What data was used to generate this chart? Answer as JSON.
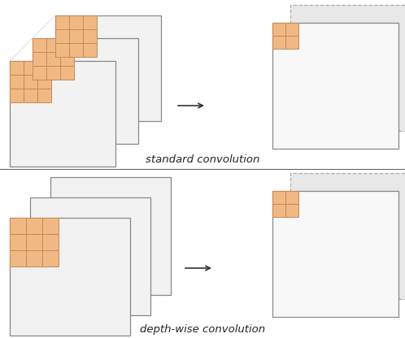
{
  "fig_width": 4.98,
  "fig_height": 4.16,
  "dpi": 100,
  "bg_color": "#ffffff",
  "orange_fill": "#f0b882",
  "orange_edge": "#c8895a",
  "box_fill_light": "#f2f2f2",
  "box_fill_lighter": "#f8f8f8",
  "box_edge": "#888888",
  "dashed_fill": "#e8e8e8",
  "dashed_edge": "#aaaaaa",
  "divider_color": "#666666",
  "dot_color": "#999999",
  "arrow_color": "#333333",
  "label_top": "standard convolution",
  "label_bottom": "depth-wise convolution",
  "label_fontsize": 9.5
}
